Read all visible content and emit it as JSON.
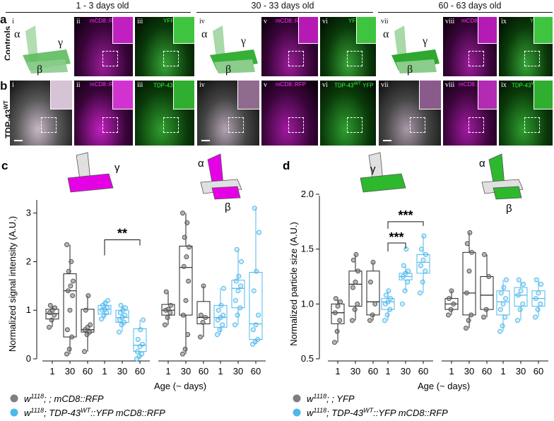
{
  "header": {
    "col1": "1 - 3 days old",
    "col2": "30 - 33 days old",
    "col3": "60 - 63 days old"
  },
  "panel_a": {
    "letter": "a",
    "row_label": "Controls",
    "roman": [
      "i",
      "ii",
      "iii",
      "iv",
      "v",
      "vi",
      "vii",
      "viii",
      "ix"
    ],
    "channel_labels": [
      "mCD8::RFP",
      "YFP",
      "mCD8::RFP",
      "YFP",
      "mCD8::RFP",
      "YFP"
    ]
  },
  "panel_b": {
    "letter": "b",
    "row_label": "TDP-43",
    "row_label_sup": "WT",
    "roman": [
      "i",
      "ii",
      "iii",
      "iv",
      "v",
      "vi",
      "vii",
      "viii",
      "ix"
    ],
    "label_rfp": "mCD8::RFP",
    "label_tdp": "TDP-43",
    "label_tdp_sup": "WT",
    "label_yfp": "YFP"
  },
  "greek": {
    "alpha": "α",
    "beta": "β",
    "gamma": "γ"
  },
  "colors": {
    "magenta": "#e600e6",
    "green": "#2eb82e",
    "blue": "#4db8ec",
    "grey": "#7f7f7f"
  },
  "chart_data": [
    {
      "type": "box",
      "panel": "c",
      "ylabel": "Normalized signal intensity (A.U.)",
      "xlabel": "Age (~ days)",
      "ylim": [
        0,
        3.3
      ],
      "yticks": [
        0,
        1,
        2,
        3
      ],
      "groups": [
        {
          "lobe": "gamma",
          "significance": "**",
          "sig_between": [
            1,
            60
          ],
          "series": "ctrl",
          "categories": [
            "1",
            "30",
            "60"
          ],
          "boxes": [
            {
              "median": 0.93,
              "q1": 0.82,
              "q3": 1.02,
              "whislo": 0.65,
              "whishi": 1.1,
              "points": [
                0.65,
                0.8,
                0.9,
                0.95,
                1.0,
                1.05,
                1.1
              ]
            },
            {
              "median": 1.4,
              "q1": 0.45,
              "q3": 1.75,
              "whislo": 0.1,
              "whishi": 2.35,
              "points": [
                0.1,
                0.2,
                0.45,
                0.6,
                1.0,
                1.3,
                1.4,
                1.5,
                1.6,
                1.8,
                2.0,
                2.35
              ]
            },
            {
              "median": 0.6,
              "q1": 0.55,
              "q3": 1.02,
              "whislo": 0.15,
              "whishi": 1.3,
              "points": [
                0.15,
                0.5,
                0.55,
                0.6,
                0.65,
                0.7,
                1.0,
                1.3
              ]
            }
          ]
        },
        {
          "lobe": "gamma",
          "series": "tdp",
          "categories": [
            "1",
            "30",
            "60"
          ],
          "boxes": [
            {
              "median": 1.02,
              "q1": 0.92,
              "q3": 1.1,
              "whislo": 0.82,
              "whishi": 1.2,
              "points": [
                0.82,
                0.9,
                0.95,
                1.0,
                1.02,
                1.05,
                1.1,
                1.15,
                1.2
              ]
            },
            {
              "median": 0.85,
              "q1": 0.75,
              "q3": 1.0,
              "whislo": 0.55,
              "whishi": 1.1,
              "points": [
                0.55,
                0.7,
                0.75,
                0.8,
                0.85,
                0.9,
                0.95,
                1.0,
                1.05,
                1.1
              ]
            },
            {
              "median": 0.28,
              "q1": 0.15,
              "q3": 0.62,
              "whislo": 0.0,
              "whishi": 0.8,
              "points": [
                0.0,
                0.05,
                0.1,
                0.15,
                0.25,
                0.3,
                0.4,
                0.6,
                0.8
              ]
            }
          ]
        },
        {
          "lobe": "alpha-beta",
          "series": "ctrl",
          "categories": [
            "1",
            "30",
            "60"
          ],
          "boxes": [
            {
              "median": 1.0,
              "q1": 0.9,
              "q3": 1.12,
              "whislo": 0.7,
              "whishi": 1.38,
              "points": [
                0.7,
                0.85,
                0.95,
                1.0,
                1.02,
                1.1,
                1.38
              ]
            },
            {
              "median": 1.88,
              "q1": 0.9,
              "q3": 2.32,
              "whislo": 0.1,
              "whishi": 3.0,
              "points": [
                0.1,
                0.2,
                0.5,
                0.9,
                1.2,
                1.6,
                1.9,
                2.1,
                2.3,
                2.5,
                2.8,
                3.0
              ]
            },
            {
              "median": 0.85,
              "q1": 0.72,
              "q3": 1.18,
              "whislo": 0.45,
              "whishi": 1.5,
              "points": [
                0.45,
                0.75,
                0.85,
                0.9,
                1.5
              ]
            }
          ]
        },
        {
          "lobe": "alpha-beta",
          "series": "tdp",
          "categories": [
            "1",
            "30",
            "60"
          ],
          "boxes": [
            {
              "median": 0.85,
              "q1": 0.65,
              "q3": 1.1,
              "whislo": 0.5,
              "whishi": 1.45,
              "points": [
                0.5,
                0.6,
                0.7,
                0.8,
                0.85,
                0.9,
                1.0,
                1.1,
                1.45
              ]
            },
            {
              "median": 1.45,
              "q1": 1.05,
              "q3": 1.62,
              "whislo": 0.7,
              "whishi": 2.25,
              "points": [
                0.7,
                0.9,
                1.05,
                1.2,
                1.4,
                1.5,
                1.6,
                1.7,
                2.0,
                2.25
              ]
            },
            {
              "median": 0.72,
              "q1": 0.4,
              "q3": 1.78,
              "whislo": 0.3,
              "whishi": 3.1,
              "points": [
                0.3,
                0.35,
                0.4,
                0.6,
                0.7,
                0.9,
                1.4,
                1.8,
                2.6,
                3.1
              ]
            }
          ]
        }
      ]
    },
    {
      "type": "box",
      "panel": "d",
      "ylabel": "Normalized particle size (A.U.)",
      "xlabel": "Age (~ days)",
      "ylim": [
        0.5,
        2.0
      ],
      "yticks": [
        0.5,
        1.0,
        1.5,
        2.0
      ],
      "groups": [
        {
          "lobe": "gamma",
          "series": "ctrl",
          "categories": [
            "1",
            "30",
            "60"
          ],
          "boxes": [
            {
              "median": 0.92,
              "q1": 0.82,
              "q3": 1.0,
              "whislo": 0.65,
              "whishi": 1.05,
              "points": [
                0.65,
                0.75,
                0.85,
                0.92,
                0.98,
                1.02,
                1.05
              ]
            },
            {
              "median": 1.18,
              "q1": 0.98,
              "q3": 1.3,
              "whislo": 0.85,
              "whishi": 1.45,
              "points": [
                0.85,
                0.95,
                1.0,
                1.15,
                1.2,
                1.3,
                1.4,
                1.45
              ]
            },
            {
              "median": 1.02,
              "q1": 0.9,
              "q3": 1.3,
              "whislo": 0.85,
              "whishi": 1.38,
              "points": [
                0.85,
                0.9,
                1.0,
                1.2,
                1.38
              ]
            }
          ]
        },
        {
          "lobe": "gamma",
          "series": "tdp",
          "categories": [
            "1",
            "30",
            "60"
          ],
          "significance": [
            "***",
            "***"
          ],
          "boxes": [
            {
              "median": 1.02,
              "q1": 0.95,
              "q3": 1.05,
              "whislo": 0.85,
              "whishi": 1.12,
              "points": [
                0.85,
                0.9,
                0.95,
                1.0,
                1.02,
                1.05,
                1.08,
                1.12
              ]
            },
            {
              "median": 1.25,
              "q1": 1.22,
              "q3": 1.28,
              "whislo": 1.12,
              "whishi": 1.35,
              "points": [
                1.0,
                1.12,
                1.2,
                1.25,
                1.28,
                1.3,
                1.35,
                1.5
              ]
            },
            {
              "median": 1.38,
              "q1": 1.28,
              "q3": 1.45,
              "whislo": 1.1,
              "whishi": 1.62,
              "points": [
                1.1,
                1.2,
                1.3,
                1.35,
                1.4,
                1.45,
                1.5,
                1.62
              ]
            }
          ]
        },
        {
          "lobe": "alpha-beta",
          "series": "ctrl",
          "categories": [
            "1",
            "30",
            "60"
          ],
          "boxes": [
            {
              "median": 1.0,
              "q1": 0.95,
              "q3": 1.05,
              "whislo": 0.9,
              "whishi": 1.12,
              "points": [
                0.9,
                0.95,
                1.0,
                1.05,
                1.12
              ]
            },
            {
              "median": 1.1,
              "q1": 0.9,
              "q3": 1.47,
              "whislo": 0.78,
              "whishi": 1.65,
              "points": [
                0.78,
                0.85,
                0.9,
                1.1,
                1.3,
                1.47,
                1.55,
                1.65
              ]
            },
            {
              "median": 1.08,
              "q1": 0.95,
              "q3": 1.25,
              "whislo": 0.88,
              "whishi": 1.45,
              "points": [
                0.88,
                0.95,
                1.25,
                1.45
              ]
            }
          ]
        },
        {
          "lobe": "alpha-beta",
          "series": "tdp",
          "categories": [
            "1",
            "30",
            "60"
          ],
          "boxes": [
            {
              "median": 1.02,
              "q1": 0.9,
              "q3": 1.12,
              "whislo": 0.75,
              "whishi": 1.22,
              "points": [
                0.75,
                0.8,
                0.88,
                0.95,
                1.0,
                1.05,
                1.1,
                1.15,
                1.22
              ]
            },
            {
              "median": 1.08,
              "q1": 0.98,
              "q3": 1.15,
              "whislo": 0.85,
              "whishi": 1.22,
              "points": [
                0.85,
                0.95,
                1.0,
                1.08,
                1.12,
                1.18,
                1.22
              ]
            },
            {
              "median": 1.05,
              "q1": 0.98,
              "q3": 1.12,
              "whislo": 0.88,
              "whishi": 1.22,
              "points": [
                0.88,
                0.95,
                1.0,
                1.05,
                1.1,
                1.18,
                1.22
              ]
            }
          ]
        }
      ]
    }
  ],
  "axis_labels": {
    "c_ylabel": "Normalized signal intensity (A.U.)",
    "d_ylabel": "Normalized particle size (A.U.)",
    "xlabel": "Age (~ days)",
    "cats": [
      "1",
      "30",
      "60"
    ],
    "c_yticks": [
      "0",
      "1",
      "2",
      "3"
    ],
    "d_yticks": [
      "0.5",
      "1.0",
      "1.5",
      "2.0"
    ]
  },
  "legend_c": {
    "grey_main": "w",
    "grey_sup": "1118",
    "grey_rest": "; ; mCD8::RFP",
    "blue_main": "w",
    "blue_sup": "1118",
    "blue_mid": "; TDP-43",
    "blue_sup2": "WT",
    "blue_rest": "::YFP mCD8::RFP"
  },
  "legend_d": {
    "grey_main": "w",
    "grey_sup": "1118",
    "grey_rest": "; ; YFP",
    "blue_main": "w",
    "blue_sup": "1118",
    "blue_mid": "; TDP-43",
    "blue_sup2": "WT",
    "blue_rest": "::YFP mCD8::RFP"
  },
  "panel_c_letter": "c",
  "panel_d_letter": "d",
  "sig_c": "**",
  "sig_d1": "***",
  "sig_d2": "***"
}
